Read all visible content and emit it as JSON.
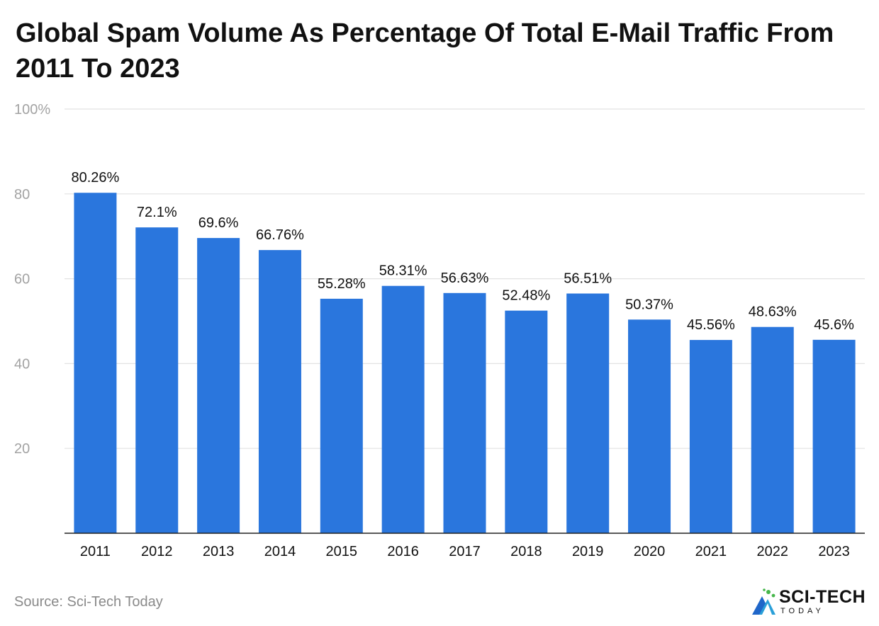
{
  "chart_data": {
    "type": "bar",
    "title": "Global Spam Volume As Percentage Of Total E-Mail Traffic From 2011 To 2023",
    "categories": [
      "2011",
      "2012",
      "2013",
      "2014",
      "2015",
      "2016",
      "2017",
      "2018",
      "2019",
      "2020",
      "2021",
      "2022",
      "2023"
    ],
    "values": [
      80.26,
      72.1,
      69.6,
      66.76,
      55.28,
      58.31,
      56.63,
      52.48,
      56.51,
      50.37,
      45.56,
      48.63,
      45.6
    ],
    "data_labels": [
      "80.26%",
      "72.1%",
      "69.6%",
      "66.76%",
      "55.28%",
      "58.31%",
      "56.63%",
      "52.48%",
      "56.51%",
      "50.37%",
      "45.56%",
      "48.63%",
      "45.6%"
    ],
    "yticks": [
      20,
      40,
      60,
      80,
      100
    ],
    "ytick_labels": [
      "20",
      "40",
      "60",
      "80",
      "100%"
    ],
    "ylim": [
      0,
      100
    ],
    "xlabel": "",
    "ylabel": "",
    "grid": true,
    "legend": "none",
    "bar_color": "#2a76dd",
    "grid_color": "#e2e2e2",
    "axis_color": "#222222",
    "tick_label_color": "#a3a3a3"
  },
  "source": "Source: Sci-Tech Today",
  "logo": {
    "main": "SCI-TECH",
    "sub": "TODAY"
  }
}
